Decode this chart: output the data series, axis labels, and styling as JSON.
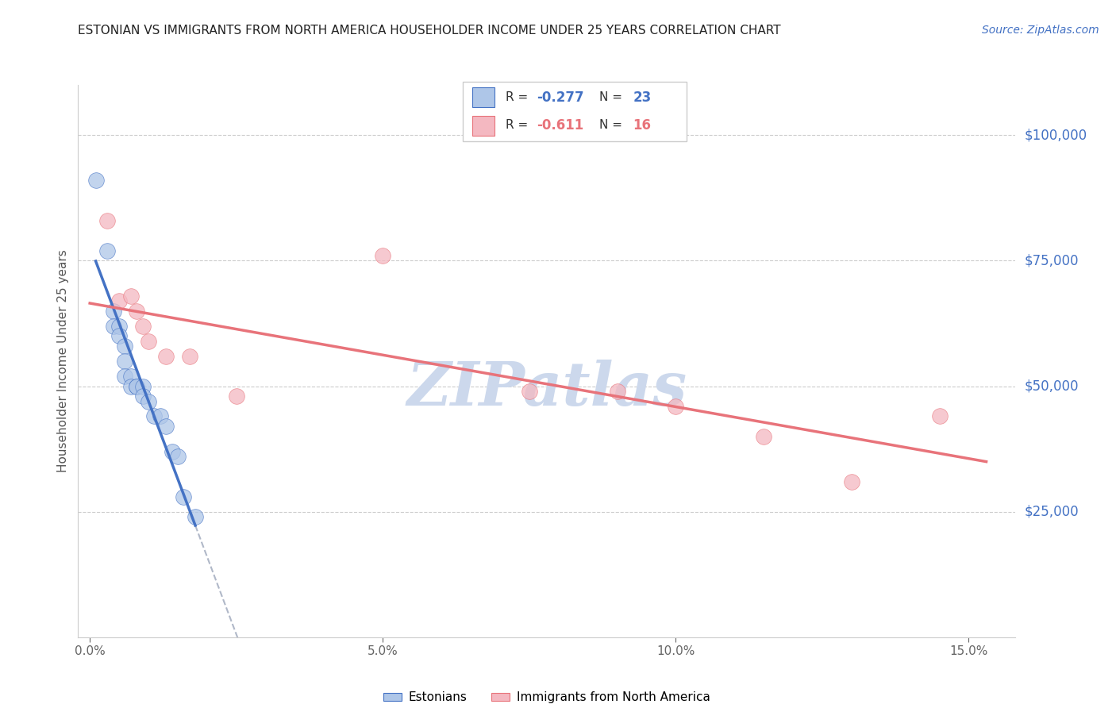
{
  "title": "ESTONIAN VS IMMIGRANTS FROM NORTH AMERICA HOUSEHOLDER INCOME UNDER 25 YEARS CORRELATION CHART",
  "source": "Source: ZipAtlas.com",
  "ylabel": "Householder Income Under 25 years",
  "xlabel_ticks": [
    "0.0%",
    "5.0%",
    "10.0%",
    "15.0%"
  ],
  "xlabel_vals": [
    0.0,
    0.05,
    0.1,
    0.15
  ],
  "ylim": [
    0,
    110000
  ],
  "xlim": [
    -0.002,
    0.158
  ],
  "yticks": [
    0,
    25000,
    50000,
    75000,
    100000
  ],
  "ytick_labels": [
    "",
    "$25,000",
    "$50,000",
    "$75,000",
    "$100,000"
  ],
  "estonians": {
    "x": [
      0.001,
      0.003,
      0.004,
      0.004,
      0.005,
      0.005,
      0.006,
      0.006,
      0.006,
      0.007,
      0.007,
      0.008,
      0.008,
      0.009,
      0.009,
      0.01,
      0.011,
      0.012,
      0.013,
      0.014,
      0.015,
      0.016,
      0.018
    ],
    "y": [
      91000,
      77000,
      65000,
      62000,
      62000,
      60000,
      58000,
      55000,
      52000,
      52000,
      50000,
      50000,
      50000,
      50000,
      48000,
      47000,
      44000,
      44000,
      42000,
      37000,
      36000,
      28000,
      24000
    ],
    "color": "#aec6e8",
    "R": -0.277,
    "N": 23
  },
  "immigrants": {
    "x": [
      0.003,
      0.005,
      0.007,
      0.008,
      0.009,
      0.01,
      0.013,
      0.017,
      0.025,
      0.05,
      0.075,
      0.09,
      0.1,
      0.115,
      0.13,
      0.145
    ],
    "y": [
      83000,
      67000,
      68000,
      65000,
      62000,
      59000,
      56000,
      56000,
      48000,
      76000,
      49000,
      49000,
      46000,
      40000,
      31000,
      44000
    ],
    "color": "#f4b8c1",
    "R": -0.611,
    "N": 16
  },
  "legend_box_color_estonian": "#aec6e8",
  "legend_box_color_immigrant": "#f4b8c1",
  "trendline_estonian_color": "#4472c4",
  "trendline_immigrant_color": "#e8737a",
  "trendline_extended_color": "#b0b8c8",
  "watermark": "ZIPatlas",
  "watermark_color": "#ccd8ec",
  "title_color": "#222222",
  "source_color": "#4472c4",
  "ylabel_color": "#555555",
  "ytick_color": "#4472c4",
  "grid_color": "#cccccc",
  "background_color": "#ffffff"
}
